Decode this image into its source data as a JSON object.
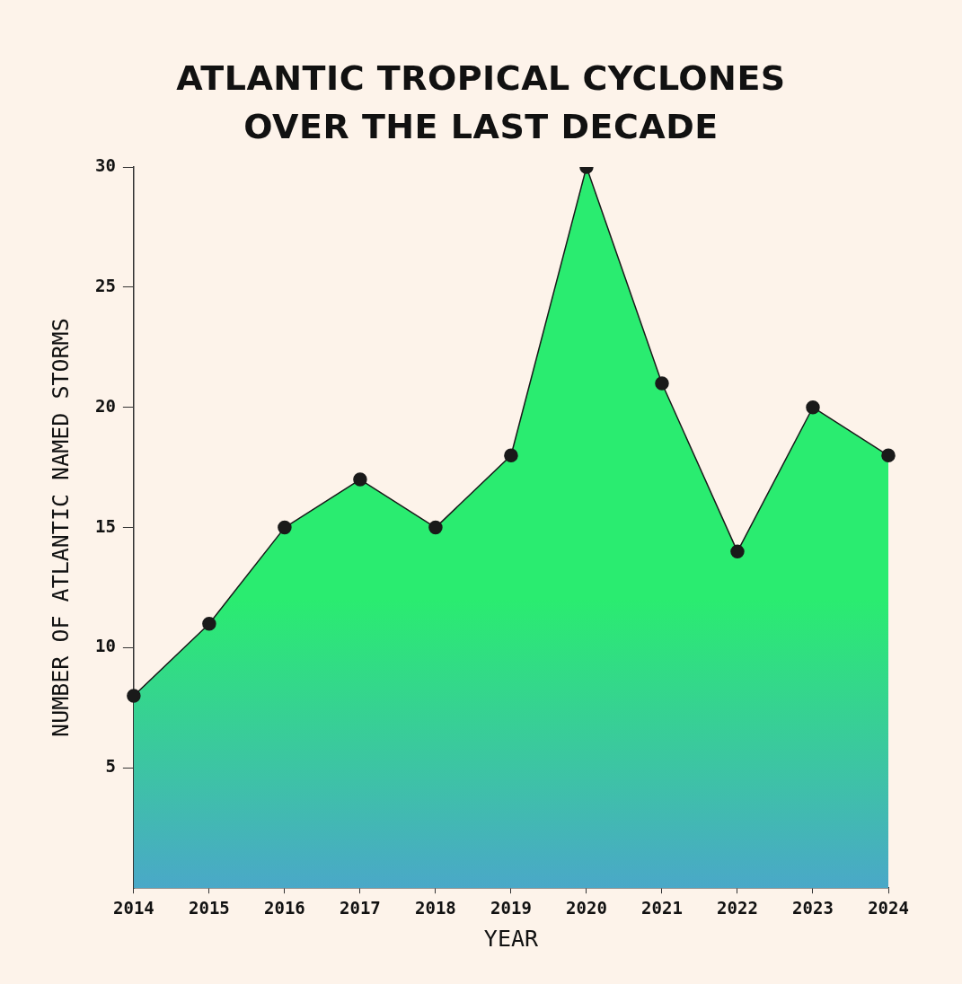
{
  "chart_data": {
    "type": "area",
    "title": "ATLANTIC TROPICAL CYCLONES OVER THE LAST DECADE",
    "xlabel": "YEAR",
    "ylabel": "NUMBER OF ATLANTIC NAMED STORMS",
    "categories": [
      "2014",
      "2015",
      "2016",
      "2017",
      "2018",
      "2019",
      "2020",
      "2021",
      "2022",
      "2023",
      "2024"
    ],
    "series": [
      {
        "color": "#2aec70",
        "values": [
          8,
          11,
          15,
          17,
          15,
          18,
          30,
          21,
          14,
          20,
          18
        ]
      }
    ],
    "ylim": [
      0,
      30
    ],
    "yticks": [
      5,
      10,
      15,
      20,
      25,
      30
    ],
    "grid": false,
    "legend": false,
    "marker": "circle"
  }
}
